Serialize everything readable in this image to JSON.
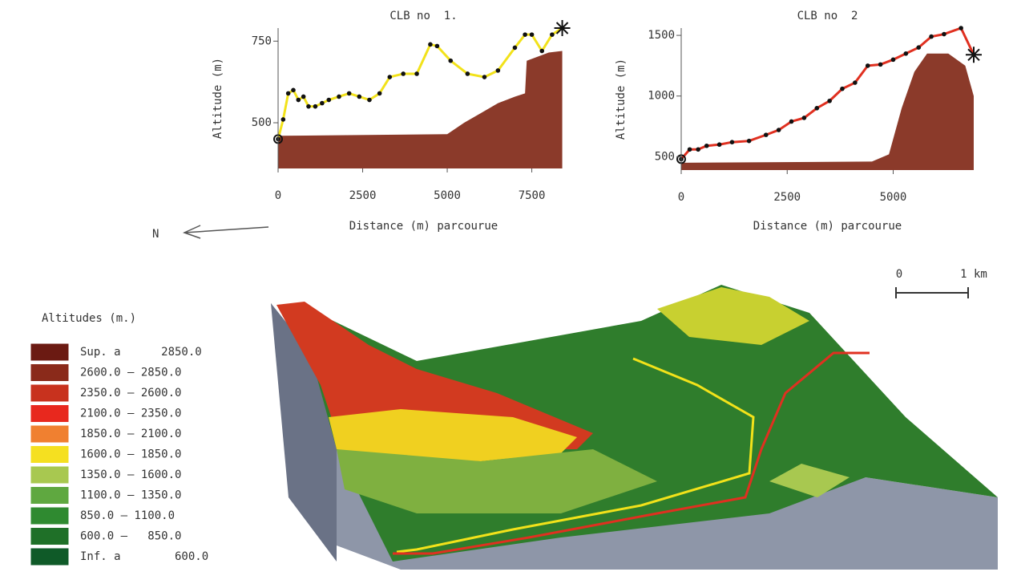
{
  "chart_data": [
    {
      "type": "line",
      "title": "CLB no  1.",
      "x_label": "Distance (m) parcourue",
      "y_label": "Altitude (m)",
      "xlim": [
        0,
        8600
      ],
      "ylim": [
        360,
        790
      ],
      "xticks": [
        0,
        2500,
        5000,
        7500
      ],
      "yticks": [
        500,
        750
      ],
      "series": [
        {
          "kind": "area",
          "color": "#8b3a2a",
          "x": [
            0,
            5000,
            5500,
            6000,
            6500,
            7000,
            7300,
            7350,
            8000,
            8400
          ],
          "values": [
            460,
            465,
            500,
            530,
            560,
            580,
            590,
            690,
            715,
            720
          ]
        },
        {
          "kind": "line",
          "color": "#f2e21a",
          "x": [
            0,
            150,
            300,
            450,
            600,
            750,
            900,
            1100,
            1300,
            1500,
            1800,
            2100,
            2400,
            2700,
            3000,
            3300,
            3700,
            4100,
            4500,
            4700,
            5100,
            5600,
            6100,
            6500,
            7000,
            7300,
            7500,
            7800,
            8100,
            8400
          ],
          "values": [
            450,
            510,
            590,
            600,
            570,
            580,
            550,
            550,
            560,
            570,
            580,
            590,
            580,
            570,
            590,
            640,
            650,
            650,
            740,
            735,
            690,
            650,
            640,
            660,
            730,
            770,
            770,
            720,
            770,
            790
          ]
        }
      ]
    },
    {
      "type": "line",
      "title": "CLB no  2",
      "x_label": "Distance (m) parcourue",
      "y_label": "Altitude (m)",
      "xlim": [
        0,
        6900
      ],
      "ylim": [
        390,
        1560
      ],
      "xticks": [
        0,
        2500,
        5000
      ],
      "yticks": [
        500,
        1000,
        1500
      ],
      "series": [
        {
          "kind": "area",
          "color": "#8b3a2a",
          "x": [
            0,
            4500,
            4900,
            5200,
            5500,
            5800,
            6300,
            6700,
            6900
          ],
          "values": [
            450,
            460,
            520,
            900,
            1200,
            1350,
            1350,
            1250,
            1000
          ]
        },
        {
          "kind": "line",
          "color": "#e03020",
          "x": [
            0,
            200,
            400,
            600,
            900,
            1200,
            1600,
            2000,
            2300,
            2600,
            2900,
            3200,
            3500,
            3800,
            4100,
            4400,
            4700,
            5000,
            5300,
            5600,
            5900,
            6200,
            6600,
            6900
          ],
          "values": [
            480,
            560,
            560,
            590,
            600,
            620,
            630,
            680,
            720,
            790,
            820,
            900,
            960,
            1060,
            1110,
            1250,
            1260,
            1300,
            1350,
            1400,
            1490,
            1510,
            1560,
            1340
          ]
        }
      ]
    }
  ],
  "north": "N",
  "scale": [
    "0",
    "1 km"
  ],
  "legend": {
    "title": "Altitudes (m.)",
    "entries": [
      {
        "label": "Sup. a      2850.0",
        "color": "#6b1a12"
      },
      {
        "label": "2600.0 – 2850.0",
        "color": "#8a2a1a"
      },
      {
        "label": "2350.0 – 2600.0",
        "color": "#c8321e"
      },
      {
        "label": "2100.0 – 2350.0",
        "color": "#e8281e"
      },
      {
        "label": "1850.0 – 2100.0",
        "color": "#f08030"
      },
      {
        "label": "1600.0 – 1850.0",
        "color": "#f5e020"
      },
      {
        "label": "1350.0 – 1600.0",
        "color": "#a8c850"
      },
      {
        "label": "1100.0 – 1350.0",
        "color": "#5fa840"
      },
      {
        "label": "850.0 – 1100.0",
        "color": "#2f8a30"
      },
      {
        "label": "600.0 –   850.0",
        "color": "#1f7028"
      },
      {
        "label": "Inf. a        600.0",
        "color": "#0f5a28"
      }
    ]
  }
}
